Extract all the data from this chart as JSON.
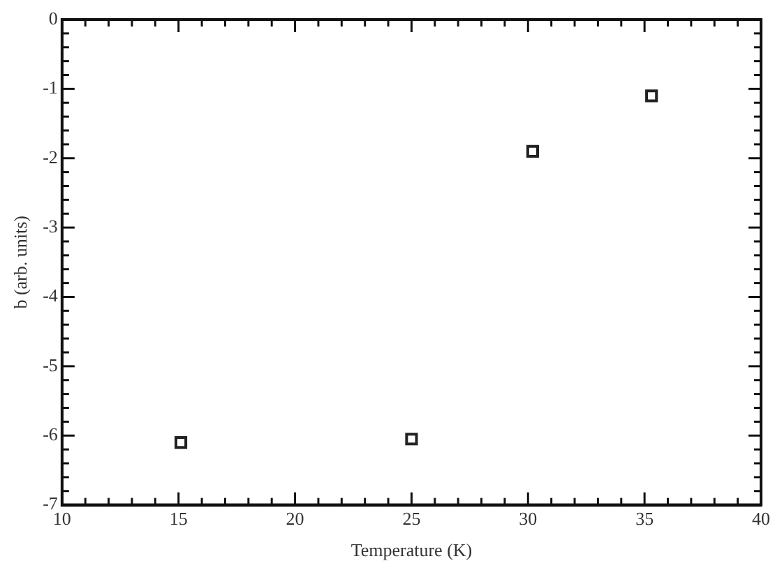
{
  "chart_data": {
    "type": "scatter",
    "xlabel": "Temperature (K)",
    "ylabel": "b (arb. units)",
    "x": [
      15.1,
      25.0,
      30.2,
      35.3
    ],
    "series": [
      {
        "color": "#222222",
        "values": [
          -6.1,
          -6.05,
          -1.9,
          -1.1
        ]
      }
    ],
    "xlim": [
      10,
      40
    ],
    "xticks": [
      10,
      15,
      20,
      25,
      30,
      35,
      40
    ],
    "ylim": [
      -7,
      0
    ],
    "yticks": [
      -7,
      -6,
      -5,
      -4,
      -3,
      -2,
      -1,
      0
    ],
    "marker": "square",
    "grid": false,
    "legend": false
  }
}
